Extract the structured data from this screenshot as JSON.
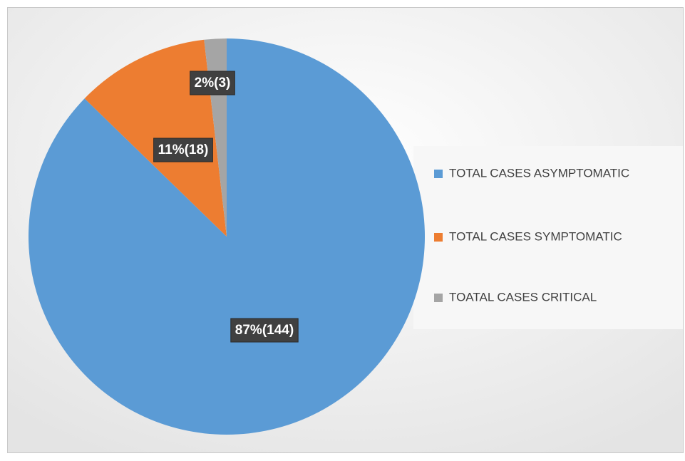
{
  "chart_data": {
    "type": "pie",
    "categories": [
      "TOTAL CASES ASYMPTOMATIC",
      "TOTAL CASES SYMPTOMATIC",
      "TOATAL CASES CRITICAL"
    ],
    "values": [
      144,
      18,
      3
    ],
    "value_labels": [
      "87%(144)",
      "11%(18)",
      "2%(3)"
    ],
    "colors": [
      "#5b9bd5",
      "#ed7d31",
      "#a5a5a5"
    ],
    "legend": "right"
  }
}
